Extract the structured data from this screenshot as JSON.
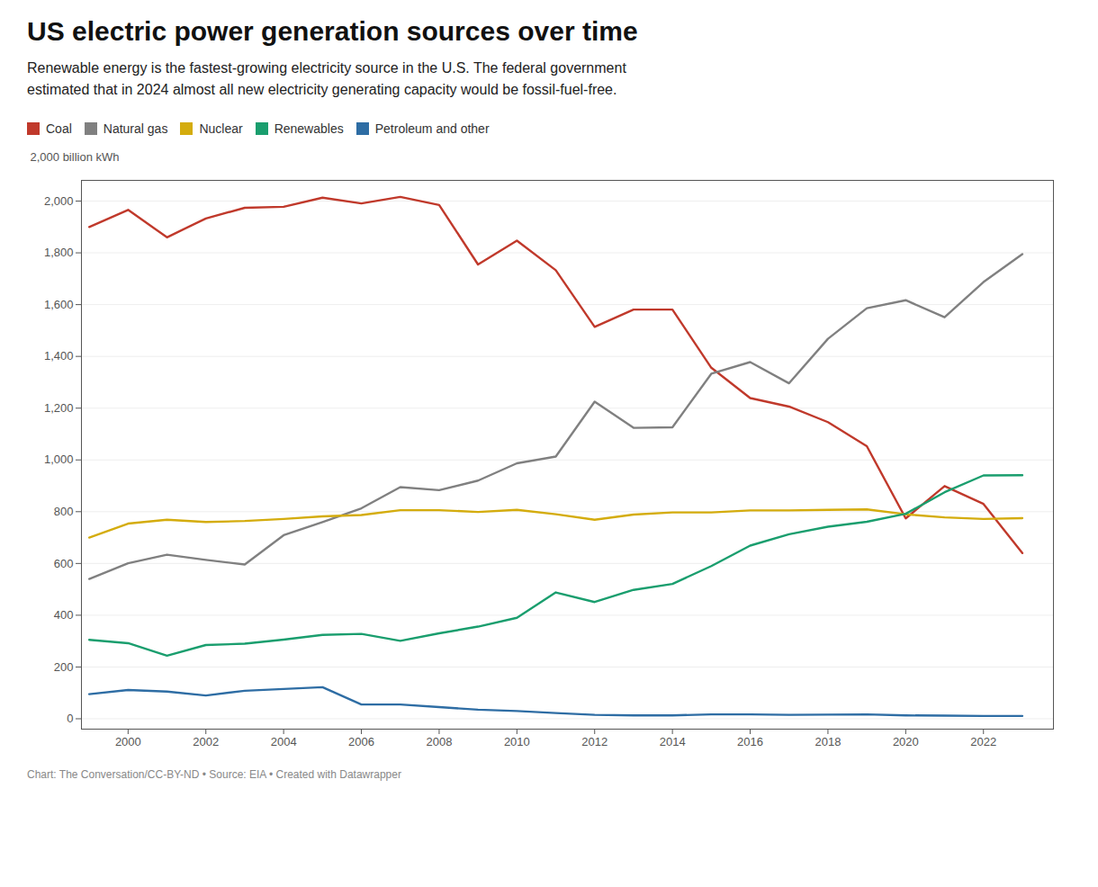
{
  "chart_data": {
    "type": "line",
    "title": "US electric power generation sources over time",
    "subtitle": "Renewable energy is the fastest-growing electricity source in the U.S. The federal government\nestimated that in 2024 almost all new electricity generating capacity would be fossil-fuel-free.",
    "caption": "Chart: The Conversation/CC-BY-ND • Source: EIA • Created with Datawrapper",
    "ylabel": "2,000 billion kWh",
    "x": [
      1999,
      2000,
      2001,
      2002,
      2003,
      2004,
      2005,
      2006,
      2007,
      2008,
      2009,
      2010,
      2011,
      2012,
      2013,
      2014,
      2015,
      2016,
      2017,
      2018,
      2019,
      2020,
      2021,
      2022,
      2023
    ],
    "series": [
      {
        "name": "Coal",
        "color": "#c0392b",
        "values": [
          1900,
          1966,
          1860,
          1933,
          1974,
          1978,
          2013,
          1991,
          2016,
          1985,
          1755,
          1847,
          1733,
          1514,
          1581,
          1581,
          1356,
          1239,
          1206,
          1146,
          1053,
          774,
          899,
          830,
          640
        ]
      },
      {
        "name": "Natural gas",
        "color": "#808080",
        "values": [
          540,
          601,
          634,
          614,
          596,
          709,
          760,
          813,
          895,
          883,
          920,
          987,
          1013,
          1225,
          1124,
          1126,
          1333,
          1378,
          1296,
          1468,
          1586,
          1617,
          1551,
          1687,
          1795
        ]
      },
      {
        "name": "Nuclear",
        "color": "#d4ac0d",
        "values": [
          700,
          754,
          769,
          760,
          764,
          772,
          782,
          787,
          806,
          806,
          799,
          807,
          790,
          769,
          789,
          797,
          797,
          805,
          805,
          807,
          809,
          790,
          778,
          772,
          775
        ]
      },
      {
        "name": "Renewables",
        "color": "#1a9e6e",
        "values": [
          305,
          292,
          244,
          285,
          290,
          306,
          324,
          328,
          301,
          330,
          356,
          390,
          488,
          451,
          498,
          521,
          590,
          669,
          713,
          742,
          761,
          792,
          875,
          940,
          941
        ]
      },
      {
        "name": "Petroleum and other",
        "color": "#2e6da4",
        "values": [
          95,
          111,
          105,
          90,
          108,
          115,
          122,
          55,
          55,
          45,
          35,
          30,
          22,
          15,
          13,
          13,
          17,
          17,
          15,
          16,
          17,
          13,
          12,
          11,
          11
        ]
      }
    ],
    "xlim": [
      1998.8,
      2023.8
    ],
    "xticks": [
      2000,
      2002,
      2004,
      2006,
      2008,
      2010,
      2012,
      2014,
      2016,
      2018,
      2020,
      2022
    ],
    "ylim": [
      -40,
      2080
    ],
    "yticks": [
      0,
      200,
      400,
      600,
      800,
      {
        "value": 1000,
        "label": "1,000"
      },
      {
        "value": 1200,
        "label": "1,200"
      },
      {
        "value": 1400,
        "label": "1,400"
      },
      {
        "value": 1600,
        "label": "1,600"
      },
      {
        "value": 1800,
        "label": "1,800"
      },
      {
        "value": 2000,
        "label": "2,000"
      }
    ],
    "grid": true,
    "legend": "top"
  }
}
